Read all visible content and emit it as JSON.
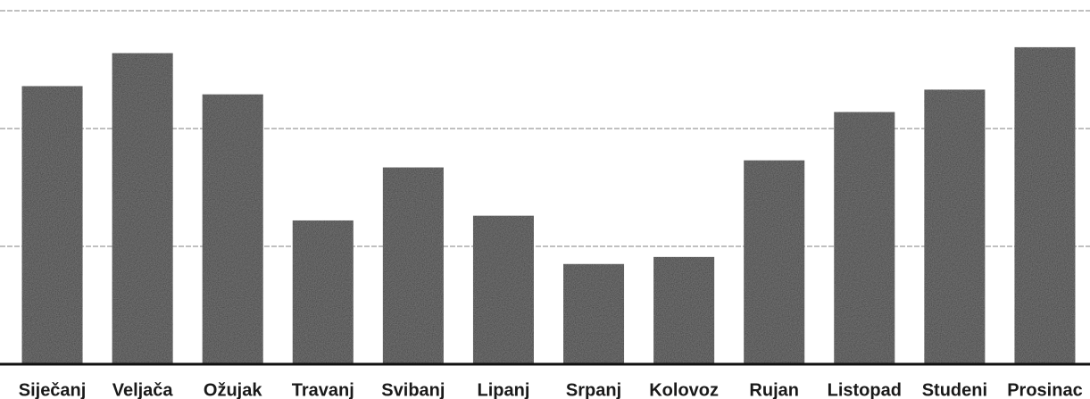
{
  "chart_data": {
    "type": "bar",
    "categories": [
      "Siječanj",
      "Veljača",
      "Ožujak",
      "Travanj",
      "Svibanj",
      "Lipanj",
      "Srpanj",
      "Kolovoz",
      "Rujan",
      "Listopad",
      "Studeni",
      "Prosinac"
    ],
    "values": [
      2.36,
      2.64,
      2.29,
      1.22,
      1.67,
      1.26,
      0.85,
      0.91,
      1.73,
      2.14,
      2.33,
      2.69
    ],
    "color": "#3b3b3b",
    "ylim": [
      0,
      3
    ],
    "yticks": [
      1,
      2,
      3
    ],
    "grid": true
  }
}
